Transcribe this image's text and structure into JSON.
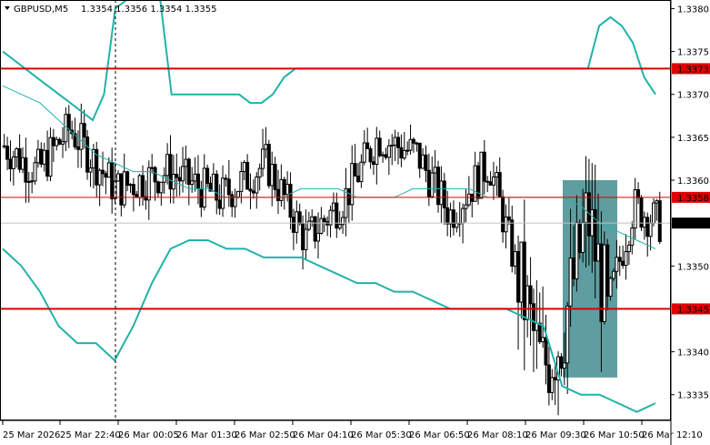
{
  "chart_header": {
    "symbol": "GBPUSD,M5",
    "ohlc": "1.3354 1.3356 1.3354 1.3355"
  },
  "colors": {
    "background": "#ffffff",
    "candle": "#000000",
    "bands": "#20b2aa",
    "level_line": "#e00000",
    "price_line": "#c0c0c0",
    "highlight_box": "#5f9ea0",
    "label_red": "#e00000"
  },
  "chart_data": {
    "type": "candlestick",
    "ylim": [
      1.3332,
      1.3381
    ],
    "y_ticks": [
      "1.3380",
      "1.3375",
      "1.3370",
      "1.3365",
      "1.3360",
      "1.3350",
      "1.3340",
      "1.3335"
    ],
    "x_tick_labels": [
      "25 Mar 2026",
      "25 Mar 22:40",
      "26 Mar 00:05",
      "26 Mar 01:30",
      "26 Mar 02:50",
      "26 Mar 04:10",
      "26 Mar 05:30",
      "26 Mar 06:50",
      "26 Mar 08:10",
      "26 Mar 09:30",
      "26 Mar 10:50",
      "26 Mar 12:10"
    ],
    "horizontal_levels": [
      {
        "price": 1.3373,
        "label": "1.3373",
        "style": "thick"
      },
      {
        "price": 1.3358,
        "label": "1.3358",
        "style": "thin"
      },
      {
        "price": 1.3345,
        "label": "1.3345",
        "style": "thick"
      }
    ],
    "current_price": {
      "price": 1.3355,
      "label": "1.3355"
    },
    "candle_count": 214,
    "first_candle_open": 1.3364,
    "bands_upper": [
      1.3375,
      1.3374,
      1.3373,
      1.3372,
      1.3371,
      1.337,
      1.3369,
      1.3368,
      1.3367,
      1.337,
      1.338,
      1.3381,
      1.3381,
      1.3381,
      1.3381,
      1.337,
      1.337,
      1.337,
      1.337,
      1.337,
      1.337,
      1.337,
      1.3369,
      1.3369,
      1.337,
      1.3372,
      1.3373,
      1.3373,
      1.3373,
      1.3373,
      1.3373,
      1.3373,
      1.3373,
      1.3373,
      1.3373,
      1.3373,
      1.3373,
      1.3373,
      1.3373,
      1.3373,
      1.3373,
      1.3373,
      1.3373,
      1.3373,
      1.3373,
      1.3373,
      1.3373,
      1.3373,
      1.3373,
      1.3373,
      1.3373,
      1.3373,
      1.3373,
      1.3378,
      1.3379,
      1.3378,
      1.3376,
      1.3372,
      1.337
    ],
    "bands_middle": [
      1.3371,
      1.337,
      1.3369,
      1.3367,
      1.3365,
      1.3363,
      1.3362,
      1.3361,
      1.3361,
      1.336,
      1.3359,
      1.3359,
      1.3358,
      1.3358,
      1.3358,
      1.3358,
      1.3359,
      1.3359,
      1.3359,
      1.3358,
      1.3358,
      1.3358,
      1.3359,
      1.3359,
      1.3359,
      1.3359,
      1.3358,
      1.3358,
      1.3358,
      1.3358,
      1.3358,
      1.3357,
      1.3355,
      1.3354,
      1.3353,
      1.3352
    ],
    "bands_lower": [
      1.3352,
      1.335,
      1.3347,
      1.3343,
      1.3341,
      1.3341,
      1.3339,
      1.3343,
      1.3348,
      1.3352,
      1.3353,
      1.3353,
      1.3352,
      1.3352,
      1.3351,
      1.3351,
      1.3351,
      1.335,
      1.3349,
      1.3348,
      1.3348,
      1.3347,
      1.3347,
      1.3346,
      1.3345,
      1.3345,
      1.3345,
      1.3345,
      1.3344,
      1.3343,
      1.3336,
      1.3335,
      1.3335,
      1.3334,
      1.3333,
      1.3334
    ]
  }
}
